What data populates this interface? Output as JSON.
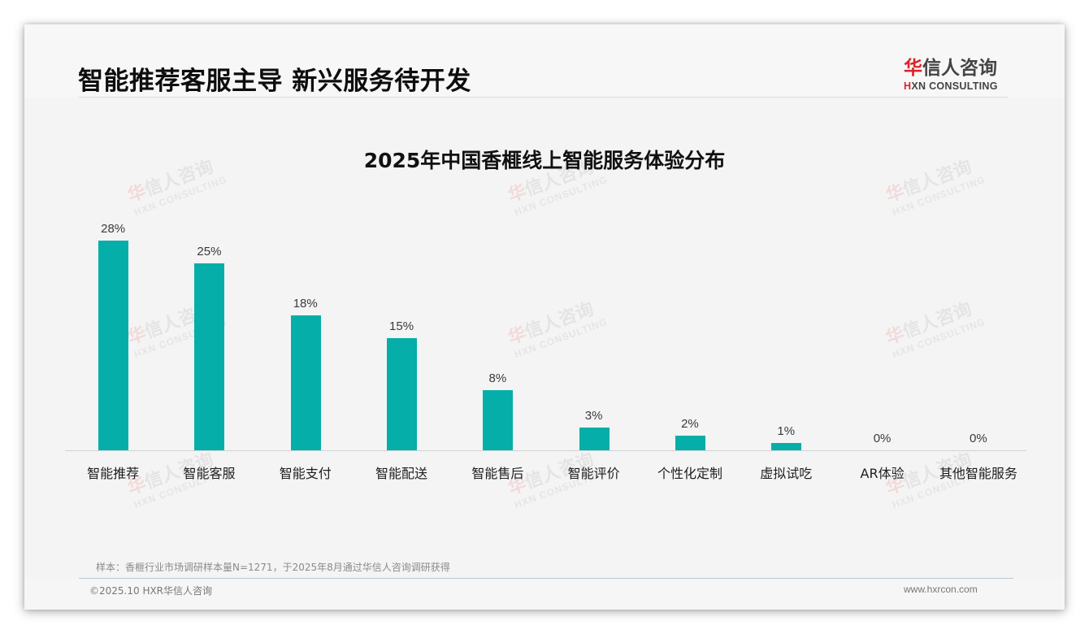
{
  "header": {
    "title": "智能推荐客服主导 新兴服务待开发",
    "logo": {
      "cn_accent": "华",
      "cn_rest": "信人咨询",
      "en_accent": "H",
      "en_rest": "XN CONSULTING"
    }
  },
  "watermark": {
    "cn_accent": "华",
    "cn_rest": "信人咨询",
    "en": "HXN CONSULTING"
  },
  "colors": {
    "bar": "#05aea8",
    "brand_red": "#d9232a"
  },
  "chart_data": {
    "type": "bar",
    "title": "2025年中国香榧线上智能服务体验分布",
    "xlabel": "",
    "ylabel": "",
    "categories": [
      "智能推荐",
      "智能客服",
      "智能支付",
      "智能配送",
      "智能售后",
      "智能评价",
      "个性化定制",
      "虚拟试吃",
      "AR体验",
      "其他智能服务"
    ],
    "values": [
      28,
      25,
      18,
      15,
      8,
      3,
      2,
      1,
      0,
      0
    ],
    "value_labels": [
      "28%",
      "25%",
      "18%",
      "15%",
      "8%",
      "3%",
      "2%",
      "1%",
      "0%",
      "0%"
    ],
    "unit": "%",
    "ylim": [
      0,
      33
    ],
    "grid": false,
    "legend": null,
    "y_axis_visible": false
  },
  "footer": {
    "source_note": "样本：香榧行业市场调研样本量N=1271，于2025年8月通过华信人咨询调研获得",
    "copyright": "©2025.10 HXR华信人咨询",
    "website": "www.hxrcon.com"
  }
}
